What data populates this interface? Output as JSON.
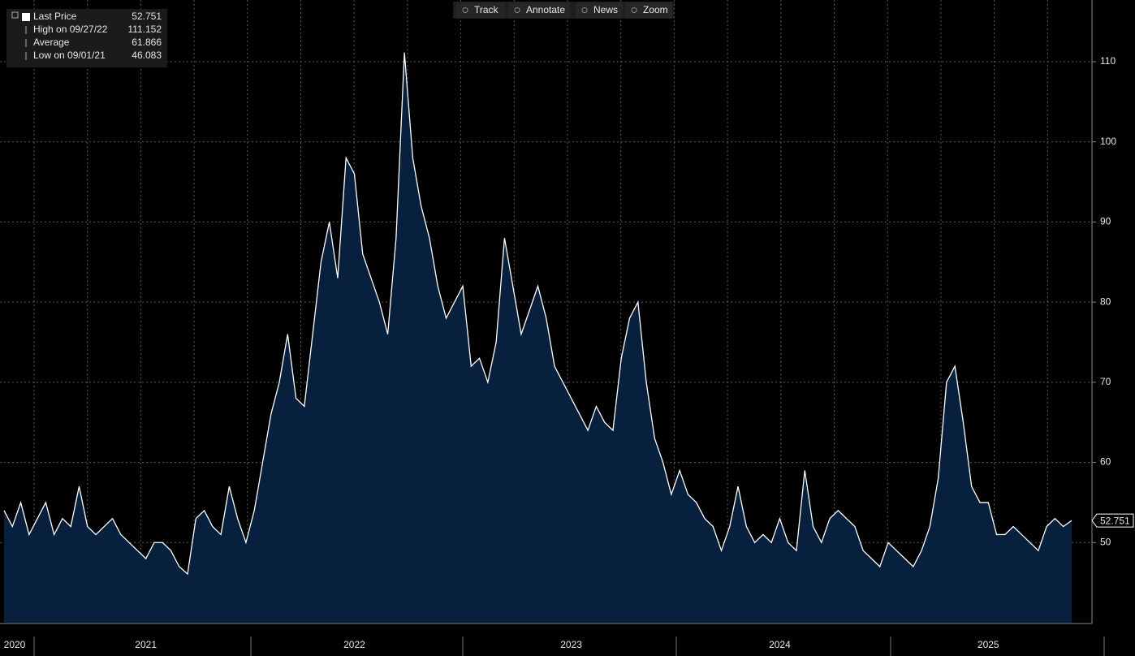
{
  "chart_data": {
    "type": "area",
    "toolbar": [
      "Track",
      "Annotate",
      "News",
      "Zoom"
    ],
    "legend": [
      {
        "label": "Last Price",
        "value": 52.751
      },
      {
        "label": "High on 09/27/22",
        "value": 111.152
      },
      {
        "label": "Average",
        "value": 61.866
      },
      {
        "label": "Low on 09/01/21",
        "value": 46.083
      }
    ],
    "categories": [
      null,
      "2020",
      null,
      null,
      null,
      null,
      null,
      null,
      null,
      null,
      null,
      null,
      null,
      null,
      null,
      null,
      null,
      "2021",
      null,
      null,
      null,
      null,
      null,
      null,
      null,
      null,
      null,
      null,
      null,
      null,
      null,
      null,
      null,
      null,
      null,
      null,
      null,
      null,
      null,
      null,
      null,
      null,
      "2022",
      null,
      null,
      null,
      null,
      null,
      null,
      null,
      null,
      null,
      null,
      null,
      null,
      null,
      null,
      null,
      null,
      null,
      null,
      null,
      null,
      null,
      null,
      null,
      null,
      null,
      "2023",
      null,
      null,
      null,
      null,
      null,
      null,
      null,
      null,
      null,
      null,
      null,
      null,
      null,
      null,
      null,
      null,
      null,
      null,
      null,
      null,
      null,
      null,
      null,
      null,
      "2024",
      null,
      null,
      null,
      null,
      null,
      null,
      null,
      null,
      null,
      null,
      null,
      null,
      null,
      null,
      null,
      null,
      null,
      null,
      null,
      null,
      null,
      null,
      null,
      null,
      "2025",
      null,
      null,
      null,
      null,
      null,
      null,
      null,
      null,
      null,
      null
    ],
    "series": [
      {
        "name": "Last Price",
        "color": "#ffffff",
        "fill": "#06203e",
        "values": [
          54,
          52,
          55,
          51,
          53,
          55,
          51,
          53,
          52,
          57,
          52,
          51,
          52,
          53,
          51,
          50,
          49,
          48,
          50,
          50,
          49,
          47,
          46.083,
          53,
          54,
          52,
          51,
          57,
          53,
          50,
          54,
          60,
          66,
          70,
          76,
          68,
          67,
          76,
          85,
          90,
          83,
          98,
          96,
          86,
          83,
          80,
          76,
          88,
          111.152,
          98,
          92,
          88,
          82,
          78,
          80,
          82,
          72,
          73,
          70,
          75,
          88,
          82,
          76,
          79,
          82,
          78,
          72,
          70,
          68,
          66,
          64,
          67,
          65,
          64,
          73,
          78,
          80,
          70,
          63,
          60,
          56,
          59,
          56,
          55,
          53,
          52,
          49,
          52,
          57,
          52,
          50,
          51,
          50,
          53,
          50,
          49,
          59,
          52,
          50,
          53,
          54,
          53,
          52,
          49,
          48,
          47,
          50,
          49,
          48,
          47,
          49,
          52,
          58,
          70,
          72,
          65,
          57,
          55,
          55,
          51,
          51,
          52,
          51,
          50,
          49,
          52,
          53,
          52,
          52.751
        ]
      }
    ],
    "ylim": [
      40,
      117.7
    ],
    "yticks": [
      50,
      60,
      70,
      80,
      90,
      100,
      110
    ],
    "grid": true
  }
}
